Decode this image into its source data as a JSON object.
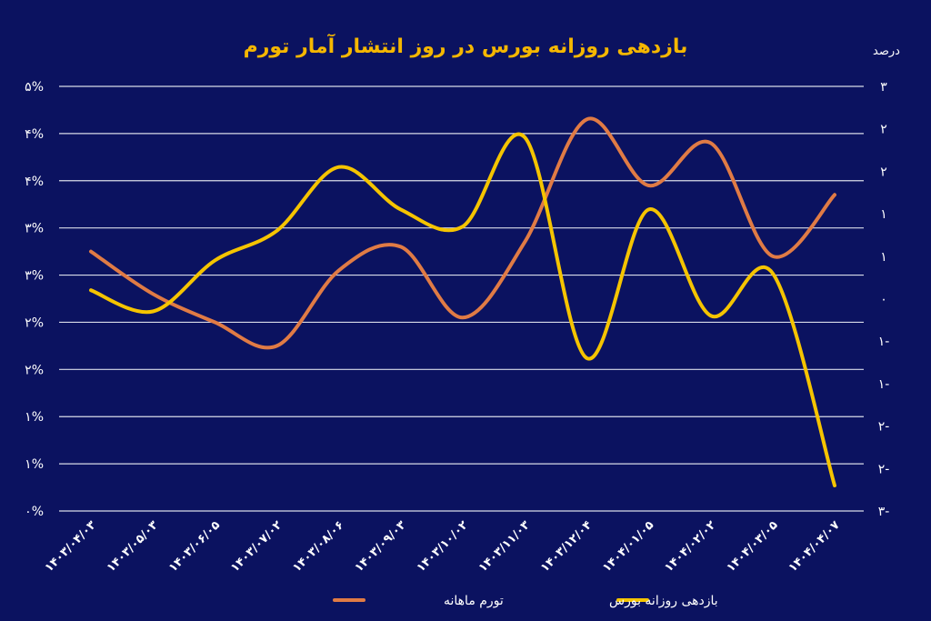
{
  "chart_data": {
    "type": "line",
    "title": "بازدهی روزانه بورس در روز انتشار آمار تورم",
    "right_axis_unit": "درصد",
    "categories": [
      "۱۴۰۳/۰۴/۰۳",
      "۱۴۰۳/۰۵/۰۳",
      "۱۴۰۳/۰۶/۰۵",
      "۱۴۰۳/۰۷/۰۲",
      "۱۴۰۳/۰۸/۰۶",
      "۱۴۰۳/۰۹/۰۳",
      "۱۴۰۳/۱۰/۰۲",
      "۱۴۰۳/۱۱/۰۳",
      "۱۴۰۳/۱۲/۰۴",
      "۱۴۰۴/۰۱/۰۵",
      "۱۴۰۴/۰۲/۰۲",
      "۱۴۰۴/۰۳/۰۵",
      "۱۴۰۴/۰۴/۰۷"
    ],
    "left_axis": {
      "ylim": [
        0,
        4.5
      ],
      "tick_labels": [
        "۰%",
        "۱%",
        "۱%",
        "۲%",
        "۲%",
        "۳%",
        "۳%",
        "۴%",
        "۴%",
        "۵%"
      ]
    },
    "right_axis": {
      "ylim": [
        -2.5,
        2.5
      ],
      "tick_labels": [
        "۳-",
        "۲-",
        "۲-",
        "۱-",
        "۱-",
        "۰",
        "۱",
        "۱",
        "۲",
        "۲",
        "۳"
      ]
    },
    "series": [
      {
        "name": "تورم ماهانه",
        "axis": "left",
        "color": "#e07b45",
        "values": [
          2.75,
          2.3,
          2.0,
          1.75,
          2.55,
          2.8,
          2.05,
          2.85,
          4.15,
          3.45,
          3.9,
          2.7,
          3.35
        ]
      },
      {
        "name": "بازدهی روزانه بورس",
        "axis": "right",
        "color": "#f5c400",
        "values": [
          0.1,
          -0.15,
          0.45,
          0.8,
          1.55,
          1.05,
          0.85,
          1.9,
          -0.7,
          1.05,
          -0.2,
          0.3,
          -2.2
        ]
      }
    ],
    "grid": true,
    "legend": "bottom-center"
  }
}
